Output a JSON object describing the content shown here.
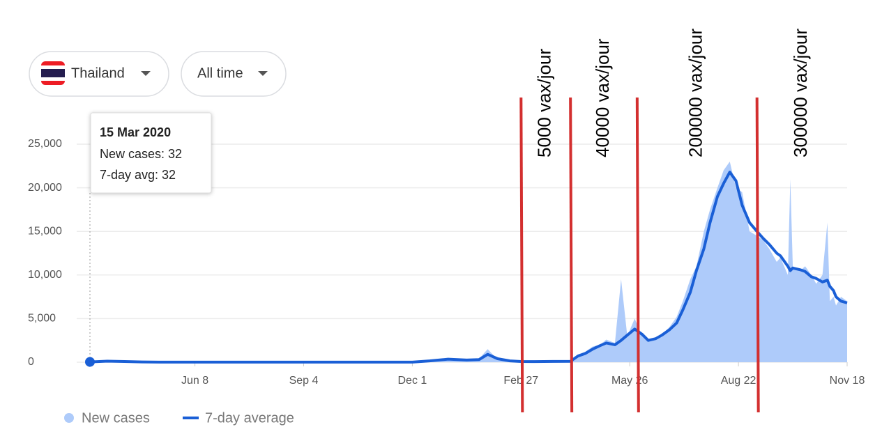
{
  "controls": {
    "region": "Thailand",
    "range": "All time"
  },
  "chart_data": {
    "type": "area-line",
    "x": [
      0,
      14,
      28,
      42,
      56,
      70,
      85,
      100,
      120,
      140,
      160,
      173,
      200,
      230,
      261,
      275,
      290,
      305,
      315,
      322,
      330,
      340,
      349,
      360,
      375,
      389,
      395,
      401,
      407,
      413,
      418,
      425,
      430,
      435,
      441,
      447,
      452,
      458,
      463,
      469,
      475,
      480,
      486,
      491,
      497,
      502,
      508,
      513,
      518,
      523,
      528,
      534,
      540,
      545,
      550,
      556,
      559,
      565,
      567,
      569,
      575,
      579,
      584,
      588,
      593,
      597,
      599,
      602,
      604,
      608,
      613
    ],
    "series": [
      {
        "name": "New cases",
        "color": "#aecbfa",
        "values": [
          32,
          150,
          60,
          20,
          10,
          5,
          5,
          5,
          5,
          5,
          5,
          5,
          5,
          5,
          15,
          200,
          400,
          200,
          400,
          1500,
          300,
          100,
          80,
          60,
          100,
          100,
          900,
          1200,
          1800,
          2000,
          2600,
          2200,
          9500,
          3000,
          5000,
          3000,
          2500,
          2800,
          3200,
          4000,
          5200,
          7000,
          9500,
          11000,
          15000,
          17500,
          20000,
          22000,
          23000,
          20000,
          19500,
          15000,
          14500,
          14000,
          13000,
          11500,
          12000,
          10000,
          21000,
          11000,
          10500,
          11000,
          10000,
          9000,
          10000,
          16000,
          7000,
          7500,
          6500,
          7500,
          7000
        ]
      },
      {
        "name": "7-day average",
        "color": "#1a5fd6",
        "values": [
          32,
          120,
          80,
          30,
          10,
          5,
          5,
          5,
          5,
          5,
          5,
          5,
          5,
          5,
          10,
          150,
          350,
          250,
          300,
          900,
          400,
          150,
          80,
          70,
          90,
          100,
          700,
          1000,
          1500,
          1900,
          2200,
          2000,
          2500,
          3100,
          3800,
          3200,
          2500,
          2700,
          3100,
          3700,
          4500,
          6000,
          8000,
          10500,
          13000,
          16000,
          19000,
          20500,
          21800,
          20800,
          18000,
          16000,
          15000,
          14200,
          13500,
          12500,
          12200,
          11000,
          10500,
          10800,
          10600,
          10400,
          9800,
          9600,
          9200,
          9400,
          8700,
          8200,
          7500,
          7000,
          6800
        ]
      }
    ],
    "xlim": [
      0,
      613
    ],
    "xticks": [
      {
        "value": 85,
        "label": "Jun 8"
      },
      {
        "value": 173,
        "label": "Sep 4"
      },
      {
        "value": 261,
        "label": "Dec 1"
      },
      {
        "value": 349,
        "label": "Feb 27"
      },
      {
        "value": 437,
        "label": "May 26"
      },
      {
        "value": 525,
        "label": "Aug 22"
      },
      {
        "value": 613,
        "label": "Nov 18"
      }
    ],
    "ylim": [
      0,
      25000
    ],
    "yticks": [
      0,
      {
        "value": 5000,
        "label": "5,000"
      },
      {
        "value": 10000,
        "label": "10,000"
      },
      {
        "value": 15000,
        "label": "15,000"
      },
      {
        "value": 20000,
        "label": "20,000"
      },
      {
        "value": 25000,
        "label": "25,000"
      }
    ],
    "grid": true,
    "annotations": [
      {
        "x": 349,
        "label": "5000 vax/jour"
      },
      {
        "x": 389,
        "label": "40000 vax/jour"
      },
      {
        "x": 443,
        "label": "200000 vax/jour"
      },
      {
        "x": 540,
        "label": "300000 vax/jour"
      }
    ],
    "annotation_color": "#d32f2f",
    "tooltip": {
      "x": 0,
      "date": "15 Mar 2020",
      "cases": "New cases: 32",
      "avg": "7-day avg: 32"
    }
  }
}
